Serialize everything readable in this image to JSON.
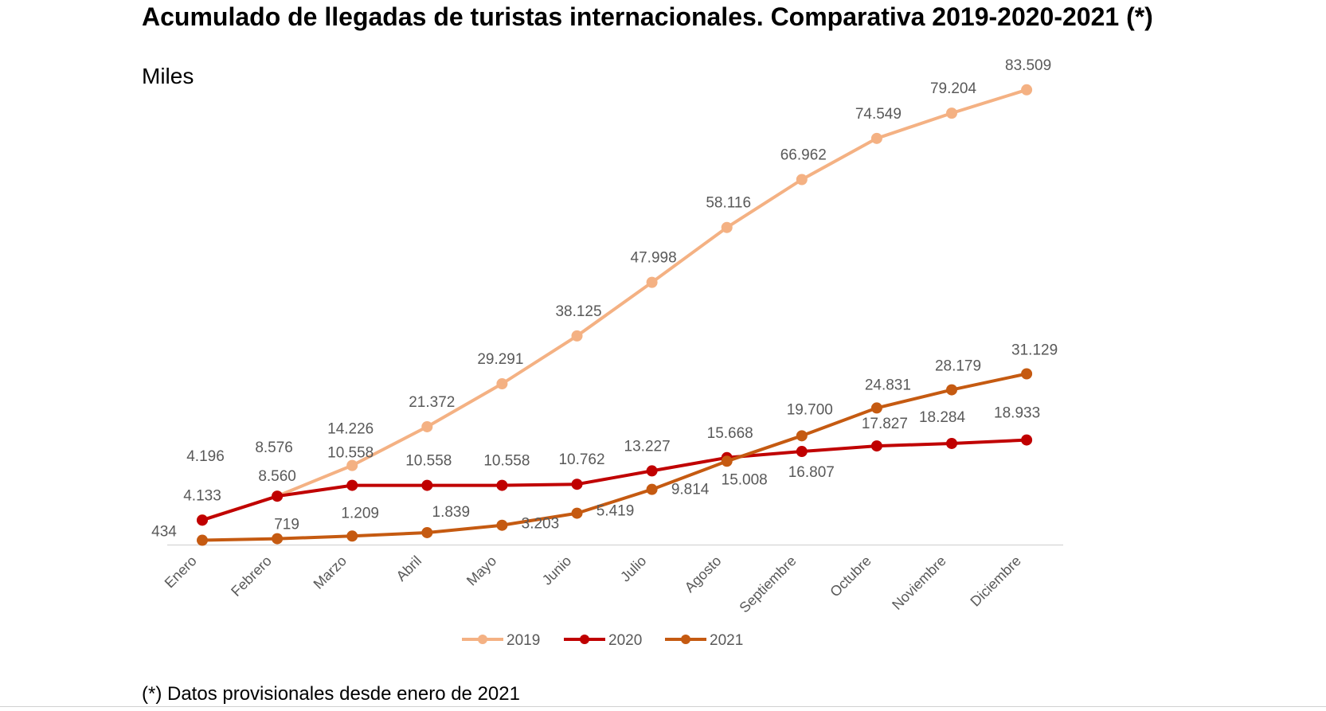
{
  "title": "Acumulado de llegadas de turistas internacionales. Comparativa 2019-2020-2021 (*)",
  "subtitle": "Miles",
  "footnote": "(*) Datos provisionales desde enero de 2021",
  "chart_data": {
    "type": "line",
    "categories": [
      "Enero",
      "Febrero",
      "Marzo",
      "Abril",
      "Mayo",
      "Junio",
      "Julio",
      "Agosto",
      "Septiembre",
      "Octubre",
      "Noviembre",
      "Diciembre"
    ],
    "ylim": [
      0,
      90000
    ],
    "grid": false,
    "legend": "bottom",
    "series": [
      {
        "name": "2019",
        "color": "#F4B183",
        "values": [
          4196,
          8576,
          14226,
          21372,
          29291,
          38125,
          47998,
          58116,
          66962,
          74549,
          79204,
          83509
        ],
        "labels": [
          "4.196",
          "8.576",
          "14.226",
          "21.372",
          "29.291",
          "38.125",
          "47.998",
          "58.116",
          "66.962",
          "74.549",
          "79.204",
          "83.509"
        ]
      },
      {
        "name": "2020",
        "color": "#C00000",
        "values": [
          4133,
          8560,
          10558,
          10558,
          10558,
          10762,
          13227,
          15668,
          16807,
          17827,
          18284,
          18933
        ],
        "labels": [
          "4.133",
          "8.560",
          "10.558",
          "10.558",
          "10.558",
          "10.762",
          "13.227",
          "15.668",
          "16.807",
          "17.827",
          "18.284",
          "18.933"
        ]
      },
      {
        "name": "2021",
        "color": "#C55A11",
        "values": [
          434,
          719,
          1209,
          1839,
          3203,
          5419,
          9814,
          15008,
          19700,
          24831,
          28179,
          31129
        ],
        "labels": [
          "434",
          "719",
          "1.209",
          "1.839",
          "3.203",
          "5.419",
          "9.814",
          "15.008",
          "19.700",
          "24.831",
          "28.179",
          "31.129"
        ]
      }
    ]
  }
}
